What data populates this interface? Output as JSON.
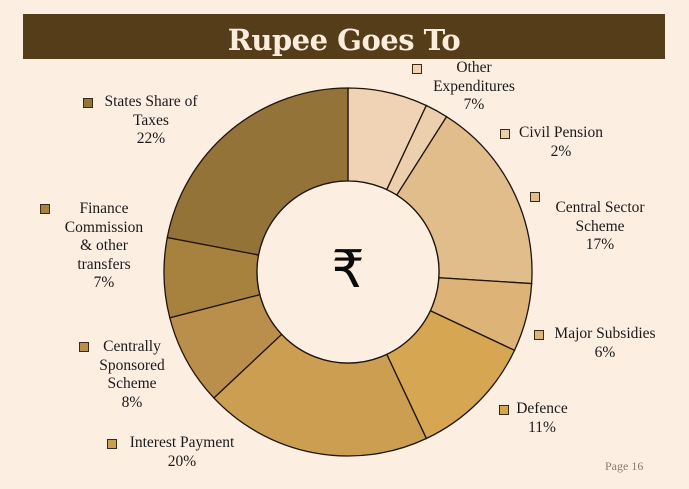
{
  "title": "Rupee Goes To",
  "center_symbol": "₹",
  "footer": {
    "page_label": "Page",
    "page_number": "16"
  },
  "colors": {
    "background": "#fdeee2",
    "title_bar": "#553d1a",
    "title_text": "#fcecdc",
    "slice_border": "#1e140a"
  },
  "chart_data": {
    "type": "pie",
    "subtype": "donut",
    "title": "Rupee Goes To",
    "center_label": "₹",
    "unit": "%",
    "start_angle": "12 o'clock, clockwise",
    "legend_position": "labels around chart with square markers",
    "categories": [
      "Other Expenditures",
      "Civil Pension",
      "Central Sector Scheme",
      "Major Subsidies",
      "Defence",
      "Interest Payment",
      "Centrally Sponsored Scheme",
      "Finance Commission & other transfers",
      "States Share of Taxes"
    ],
    "values": [
      7,
      2,
      17,
      6,
      11,
      20,
      8,
      7,
      22
    ],
    "slices": [
      {
        "label": "Other Expenditures",
        "value": 7,
        "color": "#efd3b4"
      },
      {
        "label": "Civil Pension",
        "value": 2,
        "color": "#ecd0ae"
      },
      {
        "label": "Central Sector Scheme",
        "value": 17,
        "color": "#e2bd8c"
      },
      {
        "label": "Major Subsidies",
        "value": 6,
        "color": "#ddb377"
      },
      {
        "label": "Defence",
        "value": 11,
        "color": "#d6a652"
      },
      {
        "label": "Interest Payment",
        "value": 20,
        "color": "#cc9e51"
      },
      {
        "label": "Centrally Sponsored Scheme",
        "value": 8,
        "color": "#b98f4b"
      },
      {
        "label": "Finance Commission & other transfers",
        "value": 7,
        "color": "#a7823f"
      },
      {
        "label": "States Share of Taxes",
        "value": 22,
        "color": "#937338"
      }
    ]
  },
  "legend": [
    {
      "lines": [
        "Other",
        "Expenditures"
      ],
      "pct": "7%"
    },
    {
      "lines": [
        "Civil Pension"
      ],
      "pct": "2%"
    },
    {
      "lines": [
        "Central Sector",
        "Scheme"
      ],
      "pct": "17%"
    },
    {
      "lines": [
        "Major Subsidies"
      ],
      "pct": "6%"
    },
    {
      "lines": [
        "Defence"
      ],
      "pct": "11%"
    },
    {
      "lines": [
        "Interest Payment"
      ],
      "pct": "20%"
    },
    {
      "lines": [
        "Centrally",
        "Sponsored",
        "Scheme"
      ],
      "pct": "8%"
    },
    {
      "lines": [
        "Finance",
        "Commission",
        "& other",
        "transfers"
      ],
      "pct": "7%"
    },
    {
      "lines": [
        "States Share of",
        "Taxes"
      ],
      "pct": "22%"
    }
  ]
}
